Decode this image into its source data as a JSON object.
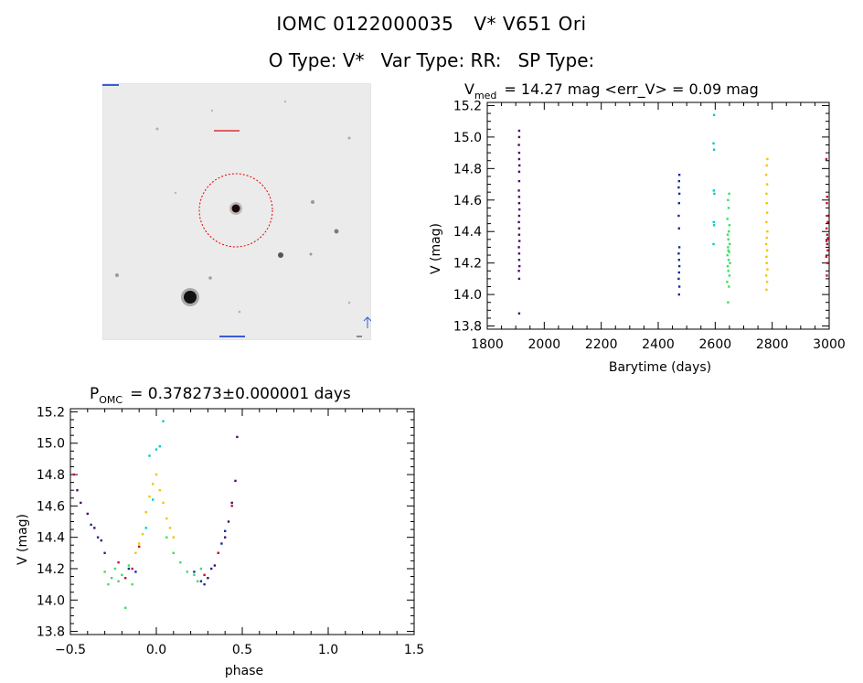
{
  "header": {
    "line1_id": "IOMC 0122000035",
    "line1_name": "V* V651 Ori",
    "otype": "O Type: V*",
    "vartype": "Var Type: RR:",
    "sptype": "SP Type:"
  },
  "sky_image": {
    "type": "image",
    "colors": {
      "background": "#ebebeb",
      "star": "#111111",
      "circle": "#e00000"
    }
  },
  "chart_data": [
    {
      "type": "scatter",
      "name": "lightcurve",
      "title_prefix": "V",
      "title_sub": "med",
      "title_rest": "= 14.27 mag <err_V> = 0.09 mag",
      "xlabel": "Barytime (days)",
      "ylabel": "V (mag)",
      "xlim": [
        1800,
        3000
      ],
      "ylim": [
        15.22,
        13.78
      ],
      "xticks": [
        1800,
        2000,
        2200,
        2400,
        2600,
        2800,
        3000
      ],
      "xtick_labels": [
        "1800",
        "2000",
        "2200",
        "2400",
        "2600",
        "2800",
        "3000"
      ],
      "yticks": [
        13.8,
        14.0,
        14.2,
        14.4,
        14.6,
        14.8,
        15.0,
        15.2
      ],
      "ytick_labels": [
        "13.8",
        "14.0",
        "14.2",
        "14.4",
        "14.6",
        "14.8",
        "15.0",
        "15.2"
      ],
      "series": [
        {
          "name": "season1",
          "color": "#4a0c6b",
          "x": [
            1912,
            1912,
            1911,
            1913,
            1912,
            1912,
            1911,
            1913,
            1912,
            1912,
            1911,
            1912,
            1913,
            1912,
            1912,
            1911,
            1912,
            1912,
            1913,
            1912,
            1912,
            1911,
            1912,
            1912
          ],
          "y": [
            13.88,
            14.1,
            14.15,
            14.18,
            14.22,
            14.26,
            14.3,
            14.34,
            14.38,
            14.42,
            14.46,
            14.5,
            14.54,
            14.58,
            14.62,
            14.66,
            14.72,
            14.78,
            14.82,
            14.86,
            14.9,
            14.95,
            15.0,
            15.04
          ]
        },
        {
          "name": "season2",
          "color": "#1a2a9a",
          "x": [
            2473,
            2474,
            2472,
            2473,
            2474,
            2473,
            2472,
            2474,
            2473,
            2472,
            2473,
            2474,
            2472,
            2473,
            2474
          ],
          "y": [
            14.0,
            14.05,
            14.1,
            14.14,
            14.18,
            14.22,
            14.26,
            14.3,
            14.42,
            14.5,
            14.58,
            14.64,
            14.68,
            14.72,
            14.76
          ]
        },
        {
          "name": "season3",
          "color": "#00c8d2",
          "x": [
            2594,
            2596,
            2595,
            2597,
            2595,
            2596,
            2594,
            2596
          ],
          "y": [
            14.32,
            14.44,
            14.46,
            14.64,
            14.66,
            14.92,
            14.96,
            15.14
          ]
        },
        {
          "name": "season4",
          "color": "#38e060",
          "x": [
            2645,
            2648,
            2642,
            2650,
            2646,
            2644,
            2652,
            2647,
            2643,
            2649,
            2645,
            2651,
            2646,
            2644,
            2648,
            2650,
            2643,
            2647,
            2645,
            2649,
            2646
          ],
          "y": [
            13.95,
            14.05,
            14.08,
            14.12,
            14.15,
            14.18,
            14.2,
            14.22,
            14.25,
            14.27,
            14.3,
            14.32,
            14.35,
            14.38,
            14.4,
            14.44,
            14.48,
            14.55,
            14.6,
            14.64,
            14.28
          ]
        },
        {
          "name": "season5",
          "color": "#f2c400",
          "x": [
            2780,
            2782,
            2779,
            2783,
            2781,
            2780,
            2782,
            2779,
            2781,
            2783,
            2780,
            2782,
            2781,
            2780,
            2782,
            2779,
            2781,
            2783
          ],
          "y": [
            14.03,
            14.08,
            14.12,
            14.16,
            14.2,
            14.24,
            14.28,
            14.32,
            14.36,
            14.4,
            14.46,
            14.52,
            14.58,
            14.64,
            14.7,
            14.76,
            14.82,
            14.86
          ]
        },
        {
          "name": "season6",
          "color": "#c8102e",
          "x": [
            2992,
            2994,
            2990,
            2995,
            2993,
            2991,
            2996,
            2993,
            2991,
            2995,
            2994,
            2992,
            2993,
            2990
          ],
          "y": [
            14.12,
            14.2,
            14.24,
            14.28,
            14.32,
            14.34,
            14.36,
            14.38,
            14.42,
            14.46,
            14.5,
            14.58,
            14.62,
            14.86
          ]
        }
      ]
    },
    {
      "type": "scatter",
      "name": "phased",
      "title_prefix": "P",
      "title_sub": "OMC",
      "title_rest": "= 0.378273±0.000001 days",
      "xlabel": "phase",
      "ylabel": "V (mag)",
      "xlim": [
        -0.5,
        1.5
      ],
      "ylim": [
        15.22,
        13.78
      ],
      "xticks": [
        -0.5,
        0.0,
        0.5,
        1.0,
        1.5
      ],
      "xtick_labels": [
        "−0.5",
        "0.0",
        "0.5",
        "1.0",
        "1.5"
      ],
      "yticks": [
        13.8,
        14.0,
        14.2,
        14.4,
        14.6,
        14.8,
        15.0,
        15.2
      ],
      "ytick_labels": [
        "13.8",
        "14.0",
        "14.2",
        "14.4",
        "14.6",
        "14.8",
        "15.0",
        "15.2"
      ],
      "series": [
        {
          "name": "season1",
          "color": "#4a0c6b",
          "x": [
            -0.46,
            -0.44,
            -0.4,
            -0.36,
            -0.32,
            0.3,
            0.34,
            0.36,
            0.4,
            0.42,
            0.44,
            0.46,
            0.47
          ],
          "y": [
            14.7,
            14.62,
            14.55,
            14.46,
            14.38,
            14.14,
            14.22,
            14.3,
            14.4,
            14.5,
            14.62,
            14.76,
            15.04
          ]
        },
        {
          "name": "season2",
          "color": "#1a2a9a",
          "x": [
            -0.38,
            -0.34,
            -0.3,
            -0.16,
            -0.12,
            0.22,
            0.26,
            0.28,
            0.32,
            0.38,
            0.4
          ],
          "y": [
            14.48,
            14.4,
            14.3,
            14.2,
            14.18,
            14.18,
            14.12,
            14.1,
            14.2,
            14.36,
            14.44
          ]
        },
        {
          "name": "season3",
          "color": "#00c8d2",
          "x": [
            -0.06,
            -0.02,
            0.0,
            0.02,
            0.04,
            -0.04
          ],
          "y": [
            14.46,
            14.64,
            14.96,
            14.98,
            15.14,
            14.92
          ]
        },
        {
          "name": "season4",
          "color": "#38e060",
          "x": [
            -0.3,
            -0.28,
            -0.26,
            -0.24,
            -0.22,
            -0.2,
            -0.18,
            -0.16,
            -0.14,
            0.06,
            0.1,
            0.14,
            0.18,
            0.22,
            0.24,
            0.26
          ],
          "y": [
            14.18,
            14.1,
            14.14,
            14.2,
            14.12,
            14.16,
            13.95,
            14.22,
            14.1,
            14.4,
            14.3,
            14.24,
            14.18,
            14.16,
            14.12,
            14.2
          ]
        },
        {
          "name": "season5",
          "color": "#f2c400",
          "x": [
            -0.12,
            -0.1,
            -0.08,
            -0.06,
            -0.04,
            -0.02,
            0.0,
            0.02,
            0.04,
            0.06,
            0.08,
            0.1
          ],
          "y": [
            14.3,
            14.36,
            14.42,
            14.56,
            14.66,
            14.74,
            14.8,
            14.7,
            14.62,
            14.52,
            14.46,
            14.4
          ]
        },
        {
          "name": "season6",
          "color": "#c8102e",
          "x": [
            -0.22,
            -0.18,
            -0.14,
            -0.1,
            0.28,
            0.36,
            0.44,
            -0.48
          ],
          "y": [
            14.24,
            14.14,
            14.2,
            14.34,
            14.16,
            14.3,
            14.6,
            14.8
          ]
        }
      ]
    }
  ]
}
